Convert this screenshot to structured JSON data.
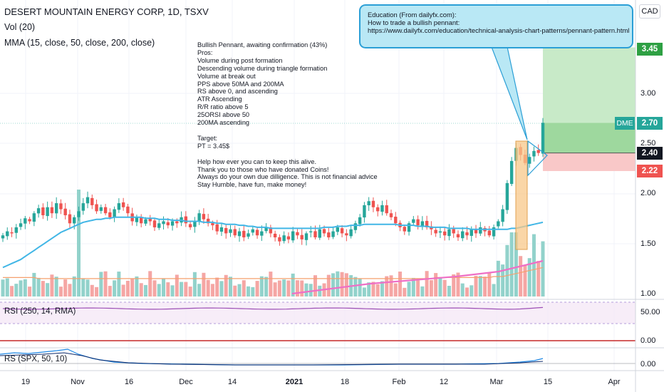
{
  "header": {
    "symbol_line": "DESERT MOUNTAIN ENERGY CORP, 1D, TSXV",
    "volume_line": "Vol (20)",
    "ma_line": "MMA (15, close, 50, close, 200, close)",
    "currency_button": "CAD"
  },
  "notes": {
    "text": "Bullish Pennant, awaiting confirmation (43%)\nPros:\nVolume during post formation\nDescending volume during triangle formation\nVolume at break out\nPPS above 50MA and 200MA\nRS above 0, and ascending\nATR Ascending\nR/R ratio above 5\n25ORSI above 50\n200MA ascending\n\nTarget:\nPT = 3.45$\n\nHelp how ever you can to keep this alive.\nThank you to those who have donated Coins!\nAlways do your own due dilligence. This is not financial advice\nStay Humble, have fun, make money!"
  },
  "callout": {
    "line1": "Education (From dailyfx.com):",
    "line2": "How to trade a bullish pennant:",
    "line3": "https://www.dailyfx.com/education/technical-analysis-chart-patterns/pennant-pattern.html"
  },
  "price_tags": {
    "target": "3.45",
    "current": "2.70",
    "current_symbol": "DME",
    "entry": "2.40",
    "stop": "2.22"
  },
  "colors": {
    "up": "#26a69a",
    "down": "#ef5350",
    "ma50": "#41b6e6",
    "ma200": "#f5a06e",
    "ma_short": "#ee6fc6",
    "rsi": "#9c4fb5",
    "rs": "#1e88e5",
    "target_zone": "#c8eac8",
    "stop_zone": "#f9c8c8",
    "pennant_box": "#f8c88a"
  },
  "chart_data": {
    "type": "candlestick",
    "price_axis": {
      "ticks": [
        "3.00",
        "2.50",
        "2.00",
        "1.50",
        "1.00"
      ]
    },
    "time_axis": [
      "19",
      "Nov",
      "16",
      "Dec",
      "14",
      "2021",
      "18",
      "Feb",
      "12",
      "Mar",
      "15",
      "Apr"
    ],
    "panes": [
      {
        "label": "RSI (250, 14, RMA)",
        "ticks": [
          "50.00",
          "0.00"
        ]
      },
      {
        "label": "RS (SPX, 50, 10)",
        "ticks": [
          "0.00"
        ]
      }
    ],
    "candles_close": [
      1.58,
      1.62,
      1.6,
      1.66,
      1.7,
      1.75,
      1.72,
      1.8,
      1.85,
      1.78,
      1.86,
      1.8,
      1.9,
      1.84,
      1.78,
      1.7,
      1.76,
      1.82,
      1.9,
      1.96,
      1.88,
      1.82,
      1.86,
      1.8,
      1.76,
      1.84,
      1.9,
      1.86,
      1.8,
      1.72,
      1.76,
      1.7,
      1.74,
      1.72,
      1.66,
      1.7,
      1.72,
      1.68,
      1.72,
      1.7,
      1.76,
      1.7,
      1.66,
      1.72,
      1.8,
      1.74,
      1.7,
      1.68,
      1.62,
      1.66,
      1.6,
      1.64,
      1.58,
      1.62,
      1.56,
      1.6,
      1.64,
      1.58,
      1.62,
      1.66,
      1.6,
      1.56,
      1.52,
      1.58,
      1.54,
      1.62,
      1.58,
      1.54,
      1.6,
      1.62,
      1.56,
      1.64,
      1.6,
      1.56,
      1.62,
      1.66,
      1.6,
      1.58,
      1.64,
      1.7,
      1.76,
      1.88,
      1.92,
      1.86,
      1.82,
      1.88,
      1.8,
      1.76,
      1.7,
      1.66,
      1.62,
      1.7,
      1.74,
      1.68,
      1.72,
      1.66,
      1.64,
      1.6,
      1.62,
      1.58,
      1.64,
      1.6,
      1.56,
      1.62,
      1.58,
      1.64,
      1.6,
      1.66,
      1.62,
      1.58,
      1.66,
      1.72,
      1.84,
      2.1,
      2.32,
      2.45,
      2.38,
      2.3,
      2.36,
      2.42,
      2.4,
      2.7
    ],
    "ma50": [
      1.26,
      1.28,
      1.3,
      1.32,
      1.34,
      1.37,
      1.4,
      1.43,
      1.46,
      1.49,
      1.52,
      1.55,
      1.58,
      1.61,
      1.63,
      1.65,
      1.67,
      1.69,
      1.71,
      1.72,
      1.73,
      1.74,
      1.74,
      1.75,
      1.75,
      1.76,
      1.76,
      1.76,
      1.76,
      1.76,
      1.76,
      1.76,
      1.75,
      1.75,
      1.75,
      1.74,
      1.74,
      1.74,
      1.73,
      1.73,
      1.73,
      1.72,
      1.72,
      1.72,
      1.72,
      1.71,
      1.71,
      1.71,
      1.7,
      1.7,
      1.69,
      1.69,
      1.69,
      1.68,
      1.68,
      1.67,
      1.67,
      1.66,
      1.66,
      1.66,
      1.65,
      1.65,
      1.65,
      1.65,
      1.65,
      1.65,
      1.65,
      1.65,
      1.65,
      1.65,
      1.65,
      1.65,
      1.66,
      1.66,
      1.66,
      1.67,
      1.67,
      1.67,
      1.68,
      1.68,
      1.68,
      1.69,
      1.69,
      1.69,
      1.69,
      1.69,
      1.69,
      1.69,
      1.69,
      1.68,
      1.68,
      1.68,
      1.68,
      1.67,
      1.67,
      1.67,
      1.66,
      1.66,
      1.66,
      1.66,
      1.65,
      1.65,
      1.65,
      1.65,
      1.65,
      1.64,
      1.64,
      1.64,
      1.64,
      1.64,
      1.64,
      1.64,
      1.64,
      1.64,
      1.65,
      1.65,
      1.66,
      1.67,
      1.68,
      1.69,
      1.7,
      1.71
    ],
    "ma200": [
      1.16,
      1.16,
      1.16,
      1.16,
      1.16,
      1.16,
      1.16,
      1.16,
      1.15,
      1.15,
      1.15,
      1.15,
      1.15,
      1.15,
      1.15,
      1.15,
      1.15,
      1.15,
      1.15,
      1.15,
      1.15,
      1.15,
      1.15,
      1.15,
      1.15,
      1.15,
      1.15,
      1.15,
      1.15,
      1.15,
      1.15,
      1.15,
      1.15,
      1.15,
      1.15,
      1.15,
      1.15,
      1.15,
      1.15,
      1.15,
      1.15,
      1.15,
      1.15,
      1.15,
      1.15,
      1.15,
      1.15,
      1.15,
      1.15,
      1.15,
      1.15,
      1.15,
      1.15,
      1.15,
      1.15,
      1.15,
      1.15,
      1.15,
      1.15,
      1.15,
      1.15,
      1.15,
      1.15,
      1.15,
      1.15,
      1.15,
      1.15,
      1.15,
      1.15,
      1.15,
      1.15,
      1.15,
      1.15,
      1.15,
      1.15,
      1.15,
      1.15,
      1.15,
      1.15,
      1.15,
      1.15,
      1.15,
      1.15,
      1.15,
      1.15,
      1.15,
      1.15,
      1.15,
      1.15,
      1.15,
      1.15,
      1.15,
      1.15,
      1.15,
      1.15,
      1.15,
      1.15,
      1.16,
      1.16,
      1.16,
      1.16,
      1.16,
      1.16,
      1.16,
      1.16,
      1.16,
      1.16,
      1.16,
      1.16,
      1.16,
      1.17,
      1.17,
      1.17,
      1.18,
      1.19,
      1.2,
      1.21,
      1.22,
      1.23,
      1.24,
      1.25,
      1.26
    ],
    "levels": {
      "target": 3.45,
      "current": 2.7,
      "entry": 2.4,
      "stop": 2.22
    }
  }
}
